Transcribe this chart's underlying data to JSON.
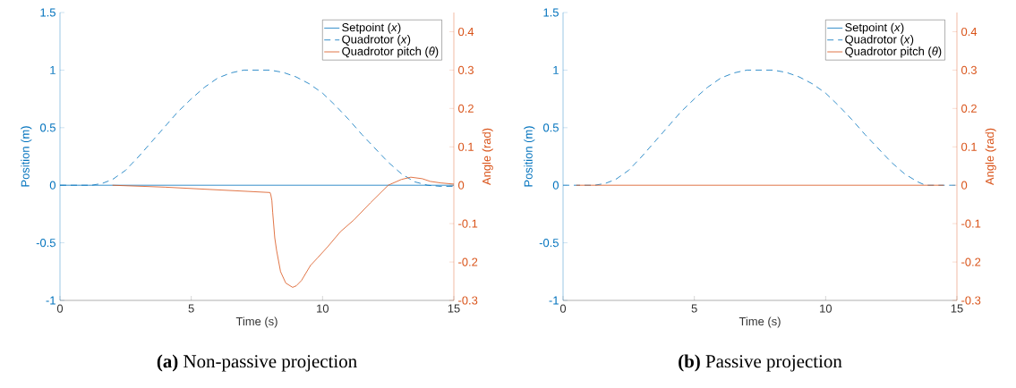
{
  "chart_data": [
    {
      "type": "line",
      "title": "**(a)** Non-passive projection",
      "xlabel": "Time (s)",
      "ylabel": "Position (m)",
      "y2label": "Angle (rad)",
      "xlim": [
        0,
        15
      ],
      "xticks": [
        0,
        5,
        10,
        15
      ],
      "ylim": [
        -1,
        1.5
      ],
      "yticks": [
        -1,
        -0.5,
        0,
        0.5,
        1,
        1.5
      ],
      "y2lim": [
        -0.3,
        0.45
      ],
      "y2ticks": [
        -0.3,
        -0.2,
        -0.1,
        0,
        0.1,
        0.2,
        0.3,
        0.4
      ],
      "legend": "top right",
      "series": [
        {
          "name": "Setpoint (*x*)",
          "color": "#0072bd",
          "line_style": "solid",
          "x": [
            0,
            15
          ],
          "values": [
            0,
            0
          ]
        },
        {
          "name": "Quadrotor (*x*)",
          "color": "#0072bd",
          "line_style": "dashed",
          "x": [
            0,
            1.2,
            1.6,
            2,
            2.5,
            3,
            3.5,
            4,
            4.5,
            5,
            5.5,
            6,
            6.5,
            7,
            7.5,
            8,
            8.5,
            9,
            9.5,
            10,
            10.5,
            11,
            11.5,
            12,
            12.5,
            13,
            13.5,
            14,
            14.5,
            15
          ],
          "values": [
            0,
            0,
            0.015,
            0.05,
            0.13,
            0.25,
            0.38,
            0.51,
            0.64,
            0.75,
            0.85,
            0.93,
            0.975,
            1.0,
            1.0,
            1.0,
            0.98,
            0.94,
            0.88,
            0.8,
            0.69,
            0.57,
            0.44,
            0.32,
            0.2,
            0.1,
            0.03,
            0,
            -0.01,
            -0.01
          ]
        },
        {
          "name": "Quadrotor pitch (*θ*)",
          "color": "#d95319",
          "line_style": "solid",
          "axis": "y2",
          "x": [
            2,
            4,
            6,
            8,
            8.03,
            8.07,
            8.1,
            8.18,
            8.25,
            8.4,
            8.6,
            8.86,
            9.0,
            9.2,
            9.54,
            9.8,
            10.2,
            10.68,
            11.2,
            11.82,
            12.5,
            13.0,
            13.36,
            13.8,
            14.1,
            14.5,
            15
          ],
          "values": [
            0,
            -0.005,
            -0.012,
            -0.019,
            -0.025,
            -0.04,
            -0.07,
            -0.137,
            -0.17,
            -0.225,
            -0.255,
            -0.266,
            -0.262,
            -0.248,
            -0.209,
            -0.19,
            -0.16,
            -0.121,
            -0.09,
            -0.046,
            0,
            0.015,
            0.021,
            0.017,
            0.01,
            0.006,
            0.003
          ]
        }
      ]
    },
    {
      "type": "line",
      "title": "**(b)** Passive projection",
      "xlabel": "Time (s)",
      "ylabel": "Position (m)",
      "y2label": "Angle (rad)",
      "xlim": [
        0,
        15
      ],
      "xticks": [
        0,
        5,
        10,
        15
      ],
      "ylim": [
        -1,
        1.5
      ],
      "yticks": [
        -1,
        -0.5,
        0,
        0.5,
        1,
        1.5
      ],
      "y2lim": [
        -0.3,
        0.45
      ],
      "y2ticks": [
        -0.3,
        -0.2,
        -0.1,
        0,
        0.1,
        0.2,
        0.3,
        0.4
      ],
      "legend": "top right",
      "series": [
        {
          "name": "Setpoint (*x*)",
          "color": "#0072bd",
          "line_style": "solid"
        },
        {
          "name": "Quadrotor (*x*)",
          "color": "#0072bd",
          "line_style": "dashed",
          "x": [
            0,
            1.2,
            1.6,
            2,
            2.5,
            3,
            3.5,
            4,
            4.5,
            5,
            5.5,
            6,
            6.5,
            7,
            7.5,
            8,
            8.5,
            9,
            9.5,
            10,
            10.5,
            11,
            11.5,
            12,
            12.5,
            13,
            13.5,
            13.8,
            15
          ],
          "values": [
            0,
            0,
            0.015,
            0.05,
            0.13,
            0.25,
            0.38,
            0.51,
            0.64,
            0.75,
            0.85,
            0.93,
            0.975,
            1.0,
            1.0,
            1.0,
            0.98,
            0.94,
            0.88,
            0.8,
            0.69,
            0.57,
            0.44,
            0.32,
            0.2,
            0.1,
            0.03,
            0,
            0
          ]
        },
        {
          "name": "Quadrotor pitch (*θ*)",
          "color": "#d95319",
          "line_style": "solid",
          "axis": "y2",
          "x": [
            0.5,
            7.5,
            14.5
          ],
          "values": [
            0,
            0,
            0
          ]
        }
      ]
    }
  ]
}
